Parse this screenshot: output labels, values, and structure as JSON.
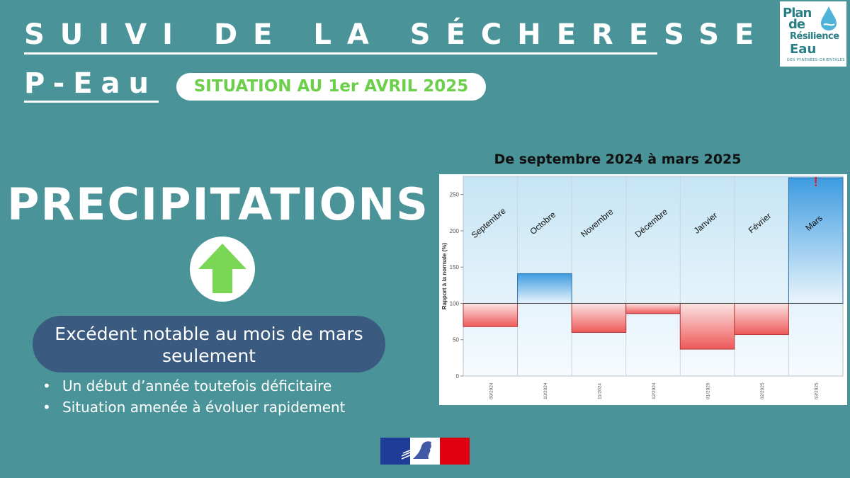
{
  "header": {
    "title": "SUIVI DE LA SÉCHERESSE",
    "subtitle": "P-Eau",
    "situation": "SITUATION AU 1er AVRIL 2025"
  },
  "logo": {
    "line1": "Plan",
    "line2": "de",
    "line3": "Résilience",
    "line4": "Eau",
    "line5": "DES PYRÉNÉES-ORIENTALES"
  },
  "indicator": {
    "title": "PRECIPITATIONS",
    "trend_icon": "up-arrow-icon",
    "trend_color": "#7ad655"
  },
  "summary": {
    "headline": "Excédent notable au mois de mars seulement",
    "bullets": [
      "Un début d’année toutefois déficitaire",
      "Situation amenée à évoluer rapidement"
    ]
  },
  "chart_title": "De septembre 2024 à mars 2025",
  "chart_data": {
    "type": "bar",
    "categories": [
      "Septembre",
      "Octobre",
      "Novembre",
      "Décembre",
      "Janvier",
      "Février",
      "Mars"
    ],
    "x_ticks": [
      "09/2024",
      "10/2024",
      "11/2024",
      "12/2024",
      "01/2025",
      "02/2025",
      "03/2025"
    ],
    "values": [
      68,
      141,
      60,
      86,
      37,
      57,
      273
    ],
    "baseline": 100,
    "ylabel": "Rapport à la normale (%)",
    "ylim": [
      0,
      275
    ],
    "yticks": [
      0,
      50,
      100,
      150,
      200,
      250
    ],
    "grid": true,
    "above_color": "#3d9be0",
    "below_color": "#ef5959",
    "alert_marker": "!",
    "alert_category": "Mars"
  }
}
